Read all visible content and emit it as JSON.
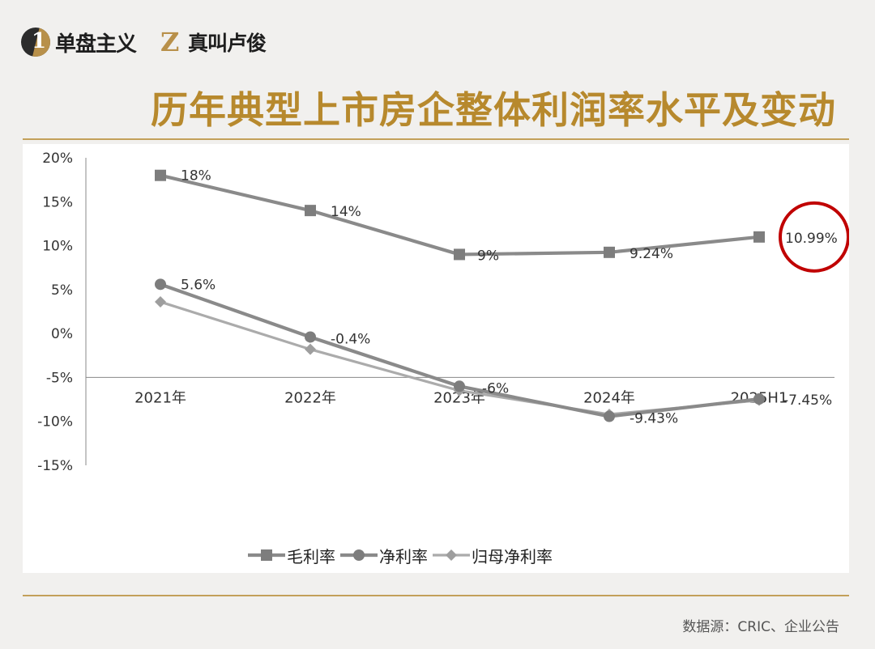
{
  "header": {
    "brand1_mark": "1",
    "brand1_name": "单盘主义",
    "brand2_mark": "Z",
    "brand2_name": "真叫卢俊",
    "title": "历年典型上市房企整体利润率水平及变动"
  },
  "footer": {
    "source": "数据源：CRIC、企业公告"
  },
  "colors": {
    "gross": "#8a8a8a",
    "net": "#8a8a8a",
    "parent": "#ababab",
    "highlight": "#c00000",
    "title": "#b7892d"
  },
  "chart_data": {
    "type": "line",
    "categories": [
      "2021年",
      "2022年",
      "2023年",
      "2024年",
      "2025H1"
    ],
    "ylim": [
      -15,
      20
    ],
    "yticks": [
      "20%",
      "15%",
      "10%",
      "5%",
      "0%",
      "-5%",
      "-10%",
      "-15%"
    ],
    "grid": false,
    "legend_position": "bottom",
    "series": [
      {
        "name": "毛利率",
        "marker": "square",
        "values": [
          18,
          14,
          9,
          9.24,
          10.99
        ],
        "labels": [
          "18%",
          "14%",
          "9%",
          "9.24%",
          "10.99%"
        ]
      },
      {
        "name": "净利率",
        "marker": "circle",
        "values": [
          5.6,
          -0.4,
          -6,
          -9.43,
          -7.45
        ],
        "labels": [
          "5.6%",
          "-0.4%",
          "-6%",
          "-9.43%",
          "-7.45%"
        ]
      },
      {
        "name": "归母净利率",
        "marker": "diamond",
        "values": [
          3.6,
          -1.8,
          -6.5,
          -9.2,
          -7.6
        ],
        "labels": []
      }
    ],
    "highlight_point": {
      "series": "毛利率",
      "category": "2025H1"
    }
  }
}
